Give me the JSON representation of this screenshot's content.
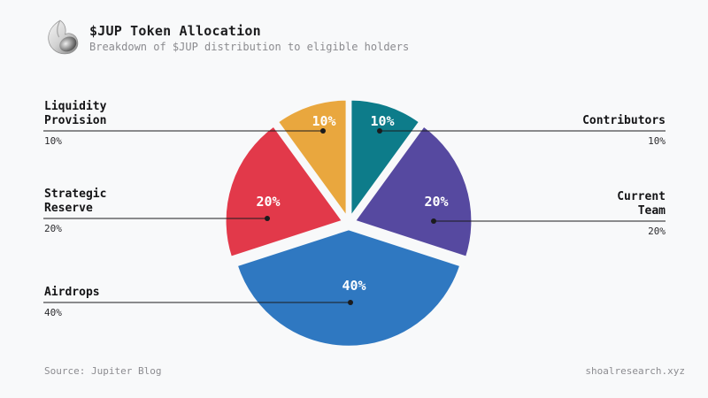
{
  "header": {
    "icon": "shell-icon",
    "title": "$JUP Token Allocation",
    "subtitle": "Breakdown of $JUP distribution to eligible holders"
  },
  "chart_data": {
    "type": "pie",
    "title": "$JUP Token Allocation",
    "start_angle_deg": 0,
    "direction": "clockwise",
    "exploded": true,
    "slices": [
      {
        "name": "Contributors",
        "value": 10,
        "percent_label": "10%",
        "color": "#0D7C8A"
      },
      {
        "name": "Current Team",
        "value": 20,
        "percent_label": "20%",
        "color": "#5649A0"
      },
      {
        "name": "Airdrops",
        "value": 40,
        "percent_label": "40%",
        "color": "#2F78C1"
      },
      {
        "name": "Strategic Reserve",
        "value": 20,
        "percent_label": "20%",
        "color": "#E2394A"
      },
      {
        "name": "Liquidity Provision",
        "value": 10,
        "percent_label": "10%",
        "color": "#E9A73E"
      }
    ]
  },
  "footer": {
    "source": "Source: Jupiter Blog",
    "site": "shoalresearch.xyz"
  },
  "colors": {
    "background": "#F8F9FA",
    "text": "#1C1C1E",
    "muted": "#8B8B8F",
    "leader_line": "#1B1B1D",
    "slice_label_text": "#FFFFFF"
  }
}
